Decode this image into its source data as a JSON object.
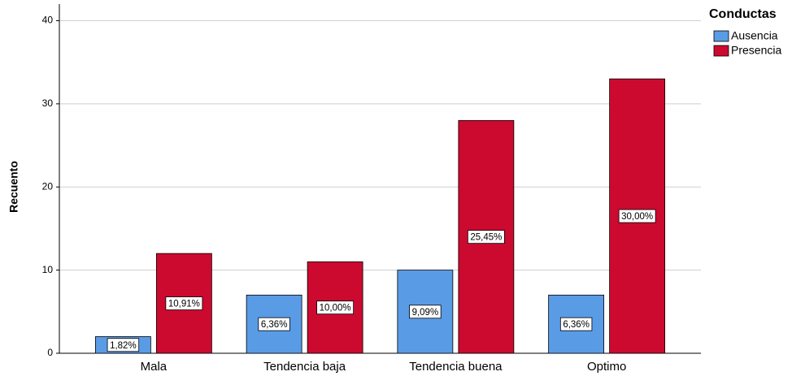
{
  "chart_data": {
    "type": "bar",
    "y_label": "Recuento",
    "legend_title": "Conductas",
    "legend": "top-right",
    "categories": [
      "Mala",
      "Tendencia baja",
      "Tendencia buena",
      "Optimo"
    ],
    "series": [
      {
        "name": "Ausencia",
        "color": "#5a9be6",
        "values": [
          2,
          7,
          10,
          7
        ],
        "percentage_labels": [
          "1,82%",
          "6,36%",
          "9,09%",
          "6,36%"
        ]
      },
      {
        "name": "Presencia",
        "color": "#cc0a30",
        "values": [
          12,
          11,
          28,
          33
        ],
        "percentage_labels": [
          "10,91%",
          "10,00%",
          "25,45%",
          "30,00%"
        ]
      }
    ],
    "ylim": [
      0,
      42
    ],
    "yticks": [
      0,
      10,
      20,
      30,
      40
    ],
    "grid": true
  }
}
